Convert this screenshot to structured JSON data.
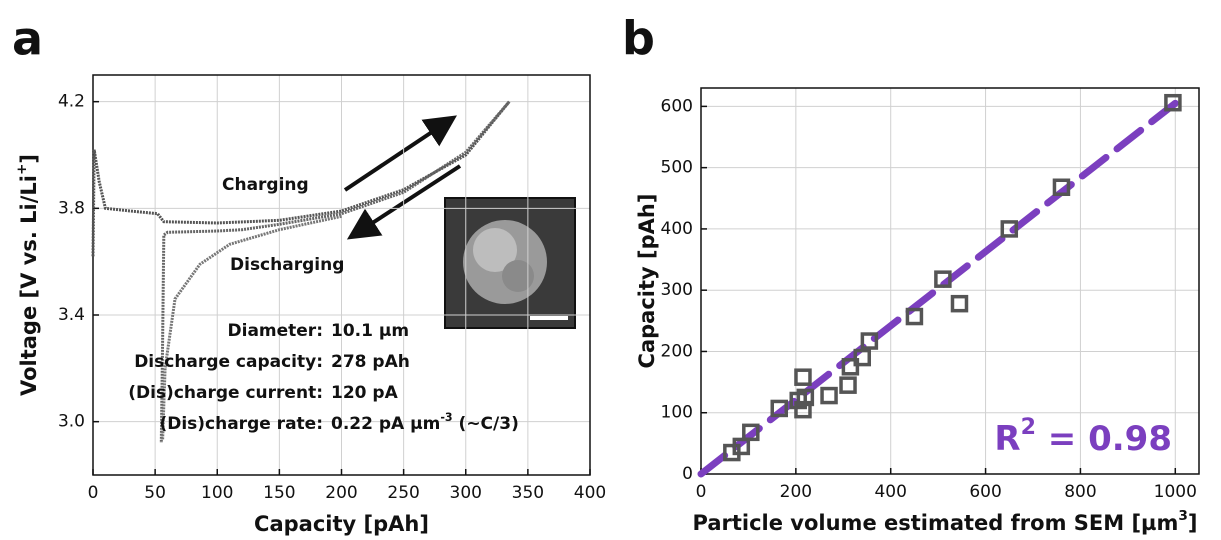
{
  "chart_data": [
    {
      "type": "line",
      "panel_label": "a",
      "xlabel": [
        "Capacity [pAh]"
      ],
      "ylabel": [
        "Voltage [V vs. Li/Li",
        "+",
        "]"
      ],
      "xlim": [
        0,
        400
      ],
      "ylim": [
        2.8,
        4.3
      ],
      "xticks": [
        0,
        50,
        100,
        150,
        200,
        250,
        300,
        350,
        400
      ],
      "yticks": [
        {
          "value": 3,
          "label": "3.0"
        },
        3.4,
        3.8,
        4.2
      ],
      "grid": true,
      "series": [
        {
          "color": "#555555",
          "x": [
            0,
            1,
            5,
            10,
            30,
            52,
            57,
            100,
            150,
            200,
            250,
            300,
            335
          ],
          "values": [
            3.62,
            4.02,
            3.9,
            3.8,
            3.79,
            3.78,
            3.75,
            3.745,
            3.755,
            3.79,
            3.87,
            4.0,
            4.2
          ]
        },
        {
          "color": "#666666",
          "x": [
            335,
            300,
            250,
            200,
            150,
            120,
            100,
            60,
            57,
            56,
            55
          ],
          "values": [
            4.2,
            4.01,
            3.86,
            3.78,
            3.74,
            3.72,
            3.715,
            3.71,
            3.7,
            3.3,
            2.92
          ]
        },
        {
          "color": "#777777",
          "x": [
            200,
            150,
            110,
            86,
            66,
            58,
            56
          ],
          "values": [
            3.77,
            3.72,
            3.665,
            3.59,
            3.46,
            3.2,
            2.93
          ]
        }
      ],
      "annotations": [
        "Charging",
        "Discharging"
      ],
      "notes": [
        {
          "label": "Diameter:",
          "value": [
            "10.1 µm"
          ]
        },
        {
          "label": "Discharge capacity:",
          "value": [
            "278 pAh"
          ]
        },
        {
          "label": "(Dis)charge current:",
          "value": [
            "120 pA"
          ]
        },
        {
          "label": "(Dis)charge rate:",
          "value": [
            "0.22 pA µm",
            "-3",
            " (~C/3)"
          ]
        }
      ]
    },
    {
      "type": "scatter",
      "panel_label": "b",
      "xlabel": [
        "Particle volume estimated from SEM [µm",
        "3",
        "]"
      ],
      "ylabel": [
        "Capacity [pAh]"
      ],
      "xlim": [
        0,
        1050
      ],
      "ylim": [
        0,
        630
      ],
      "xticks": [
        0,
        200,
        400,
        600,
        800,
        1000
      ],
      "yticks": [
        0,
        100,
        200,
        300,
        400,
        500,
        600
      ],
      "grid": true,
      "series": [
        {
          "color": "#555555",
          "x": [
            65,
            85,
            105,
            165,
            205,
            215,
            215,
            220,
            270,
            310,
            315,
            340,
            355,
            450,
            510,
            545,
            650,
            760,
            995
          ],
          "values": [
            35,
            45,
            68,
            107,
            120,
            158,
            105,
            125,
            128,
            145,
            175,
            190,
            217,
            257,
            318,
            278,
            400,
            468,
            606
          ]
        }
      ],
      "fit_line": {
        "color": "#7b3fbf",
        "x": [
          0,
          1000
        ],
        "values": [
          0,
          605
        ]
      },
      "r2": [
        "R",
        "2",
        " = 0.98"
      ]
    }
  ]
}
